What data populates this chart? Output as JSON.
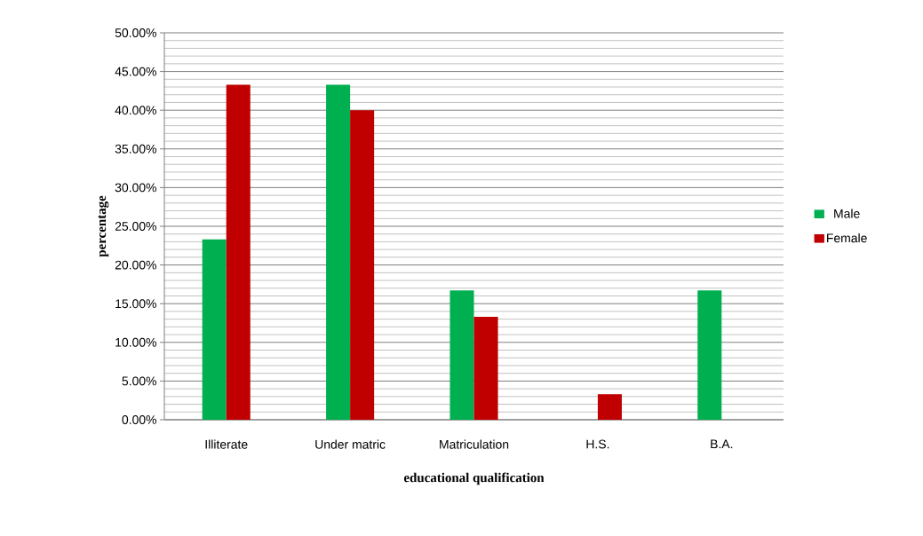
{
  "chart_data": {
    "type": "bar",
    "xlabel": "educational qualification",
    "ylabel": "percentage",
    "categories": [
      "Illiterate",
      "Under matric",
      "Matriculation",
      "H.S.",
      "B.A."
    ],
    "series": [
      {
        "name": "Male",
        "color": "#00b050",
        "values": [
          23.3,
          43.3,
          16.7,
          null,
          16.7
        ]
      },
      {
        "name": "Female",
        "color": "#c00000",
        "values": [
          43.3,
          40.0,
          13.3,
          3.3,
          null
        ]
      }
    ],
    "ylim": [
      0,
      50
    ],
    "yticks": [
      {
        "value": 0,
        "label": "0.00%"
      },
      {
        "value": 5,
        "label": "5.00%"
      },
      {
        "value": 10,
        "label": "10.00%"
      },
      {
        "value": 15,
        "label": "15.00%"
      },
      {
        "value": 20,
        "label": "20.00%"
      },
      {
        "value": 25,
        "label": "25.00%"
      },
      {
        "value": 30,
        "label": "30.00%"
      },
      {
        "value": 35,
        "label": "35.00%"
      },
      {
        "value": 40,
        "label": "40.00%"
      },
      {
        "value": 45,
        "label": "45.00%"
      },
      {
        "value": 50,
        "label": "50.00%"
      }
    ],
    "grid": true,
    "legend": "right"
  }
}
